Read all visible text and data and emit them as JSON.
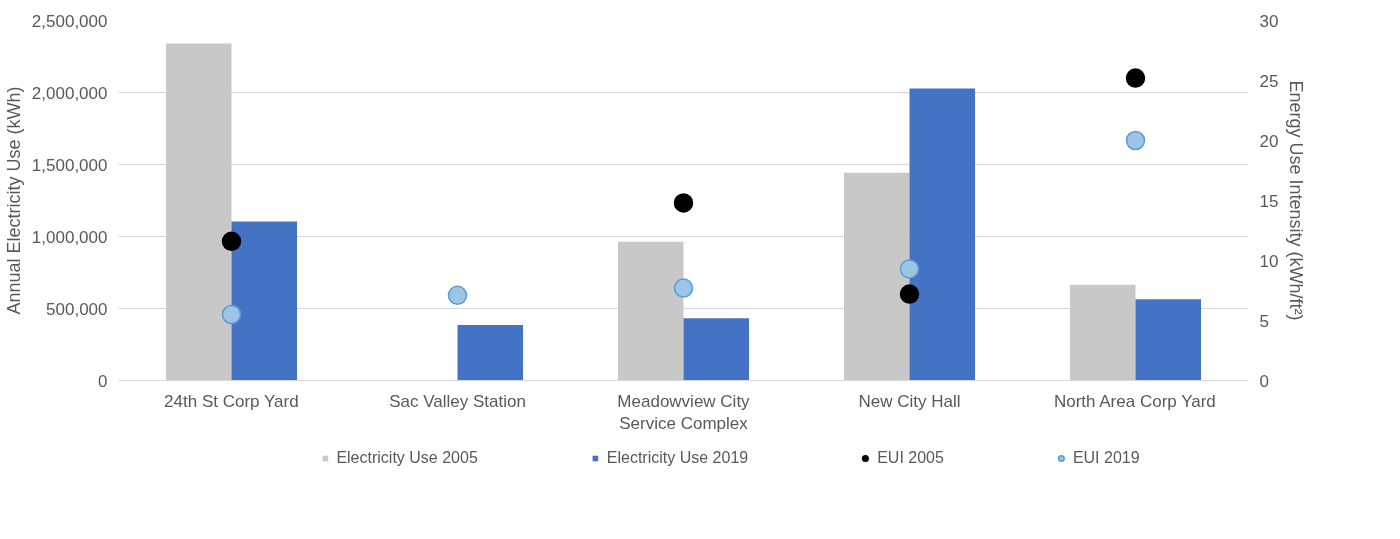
{
  "chart_data": {
    "type": "bar",
    "ylabel": "Annual Electricity Use (kWh)",
    "y2label": "Energy Use Intensity (kWh/ft²)",
    "categories": [
      "24th St Corp Yard",
      "Sac Valley Station",
      "Meadowview City Service Complex",
      "New City Hall",
      "North Area Corp Yard"
    ],
    "series": [
      {
        "name": "Electricity Use 2005",
        "color": "#c8c8c8",
        "values": [
          2340000,
          null,
          964000,
          1443000,
          665000
        ]
      },
      {
        "name": "Electricity Use 2019",
        "color": "#4472c4",
        "values": [
          1104000,
          385000,
          432000,
          2028000,
          565000
        ]
      },
      {
        "name": "EUI 2005",
        "type": "scatter",
        "axis": "y2",
        "marker": "circle",
        "color": "#000000",
        "values": [
          11.6,
          null,
          14.8,
          7.2,
          25.2
        ]
      },
      {
        "name": "EUI 2019",
        "type": "scatter",
        "axis": "y2",
        "marker": "circle",
        "color": "#9dc3e6",
        "values": [
          5.5,
          7.1,
          7.7,
          9.3,
          20.0
        ]
      }
    ],
    "ylim": [
      0,
      2500000
    ],
    "yticks": [
      {
        "value": 0,
        "label": "0"
      },
      {
        "value": 500000,
        "label": "500,000"
      },
      {
        "value": 1000000,
        "label": "1,000,000"
      },
      {
        "value": 1500000,
        "label": "1,500,000"
      },
      {
        "value": 2000000,
        "label": "2,000,000"
      },
      {
        "value": 2500000,
        "label": "2,500,000"
      }
    ],
    "y2lim": [
      0,
      30
    ],
    "y2ticks": [
      0,
      5,
      10,
      15,
      20,
      25,
      30
    ],
    "grid": "y",
    "legend": "bottom"
  }
}
